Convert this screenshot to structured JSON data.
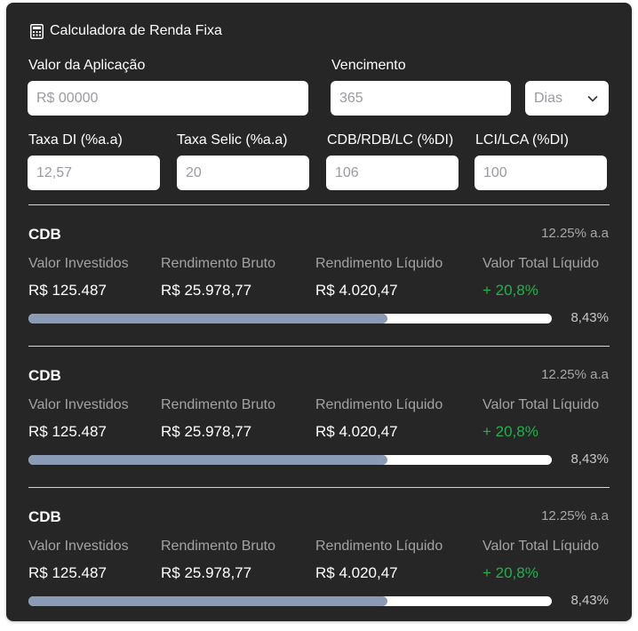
{
  "header": {
    "title": "Calculadora de Renda Fixa",
    "icon": "calculator-icon"
  },
  "form": {
    "valor_label": "Valor da Aplicação",
    "valor_placeholder": "R$ 00000",
    "vencimento_label": "Vencimento",
    "vencimento_placeholder": "365",
    "unit_selected": "Dias",
    "taxa_di_label": "Taxa DI (%a.a)",
    "taxa_di_placeholder": "12,57",
    "taxa_selic_label": "Taxa Selic (%a.a)",
    "taxa_selic_placeholder": "20",
    "cdb_label": "CDB/RDB/LC (%DI)",
    "cdb_placeholder": "106",
    "lci_label": "LCI/LCA (%DI)",
    "lci_placeholder": "100"
  },
  "results": [
    {
      "name": "CDB",
      "rate": "12.25% a.a",
      "columns": [
        {
          "label": "Valor Investidos",
          "value": "R$ 125.487"
        },
        {
          "label": "Rendimento Bruto",
          "value": "R$ 25.978,77"
        },
        {
          "label": "Rendimento Líquido",
          "value": "R$ 4.020,47"
        },
        {
          "label": "Valor Total Líquido",
          "value": "+ 20,8%"
        }
      ],
      "progress_fraction": 0.686,
      "progress_label": "8,43%"
    },
    {
      "name": "CDB",
      "rate": "12.25% a.a",
      "columns": [
        {
          "label": "Valor Investidos",
          "value": "R$ 125.487"
        },
        {
          "label": "Rendimento Bruto",
          "value": "R$ 25.978,77"
        },
        {
          "label": "Rendimento Líquido",
          "value": "R$ 4.020,47"
        },
        {
          "label": "Valor Total Líquido",
          "value": "+ 20,8%"
        }
      ],
      "progress_fraction": 0.686,
      "progress_label": "8,43%"
    },
    {
      "name": "CDB",
      "rate": "12.25% a.a",
      "columns": [
        {
          "label": "Valor Investidos",
          "value": "R$ 125.487"
        },
        {
          "label": "Rendimento Bruto",
          "value": "R$ 25.978,77"
        },
        {
          "label": "Rendimento Líquido",
          "value": "R$ 4.020,47"
        },
        {
          "label": "Valor Total Líquido",
          "value": "+ 20,8%"
        }
      ],
      "progress_fraction": 0.686,
      "progress_label": "8,43%"
    }
  ],
  "colors": {
    "card_bg": "#262626",
    "bar_fill": "#8c9bb5",
    "positive": "#22b14c"
  }
}
